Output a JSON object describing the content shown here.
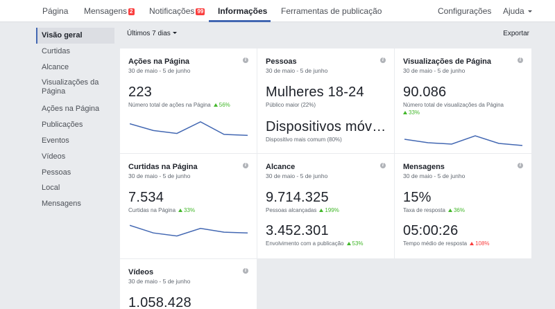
{
  "nav": {
    "tabs": [
      {
        "label": "Página"
      },
      {
        "label": "Mensagens",
        "badge": "2"
      },
      {
        "label": "Notificações",
        "badge": "99"
      },
      {
        "label": "Informações"
      },
      {
        "label": "Ferramentas de publicação"
      }
    ],
    "settings": "Configurações",
    "help": "Ajuda"
  },
  "sidebar": {
    "items": [
      {
        "label": "Visão geral"
      },
      {
        "label": "Curtidas"
      },
      {
        "label": "Alcance"
      },
      {
        "label": "Visualizações da Página"
      },
      {
        "label": "Ações na Página"
      },
      {
        "label": "Publicações"
      },
      {
        "label": "Eventos"
      },
      {
        "label": "Vídeos"
      },
      {
        "label": "Pessoas"
      },
      {
        "label": "Local"
      },
      {
        "label": "Mensagens"
      }
    ]
  },
  "filter": {
    "range": "Últimos 7 dias",
    "export": "Exportar"
  },
  "date_range": "30 de maio - 5 de junho",
  "cards": {
    "acoes": {
      "title": "Ações na Página",
      "value": "223",
      "sub": "Número total de ações na Página",
      "change": "56%",
      "spark": [
        0.2,
        0.55,
        0.7,
        0.1,
        0.75,
        0.8
      ]
    },
    "pessoas": {
      "title": "Pessoas",
      "value1": "Mulheres 18-24",
      "sub1": "Público maior (22%)",
      "value2": "Dispositivos móveis",
      "sub2": "Dispositivo mais comum (80%)"
    },
    "visualizacoes": {
      "title": "Visualizações de Página",
      "value": "90.086",
      "sub": "Número total de visualizações da Página",
      "change": "33%",
      "spark": [
        0.4,
        0.65,
        0.75,
        0.15,
        0.7,
        0.85
      ]
    },
    "curtidas": {
      "title": "Curtidas na Página",
      "value": "7.534",
      "sub": "Curtidas na Página",
      "change": "33%",
      "spark": [
        0.1,
        0.6,
        0.8,
        0.3,
        0.55,
        0.6
      ]
    },
    "alcance": {
      "title": "Alcance",
      "value1": "9.714.325",
      "sub1": "Pessoas alcançadas",
      "change1": "199%",
      "value2": "3.452.301",
      "sub2": "Envolvimento com a publicação",
      "change2": "53%"
    },
    "mensagens": {
      "title": "Mensagens",
      "value1": "15%",
      "sub1": "Taxa de resposta",
      "change1": "36%",
      "value2": "05:00:26",
      "sub2": "Tempo médio de resposta",
      "change2": "108%"
    },
    "videos": {
      "title": "Vídeos",
      "value": "1.058.428"
    }
  },
  "colors": {
    "accent": "#4267b2",
    "up": "#42b72a",
    "down": "#fa3e3e",
    "spark": "#4267b2"
  }
}
